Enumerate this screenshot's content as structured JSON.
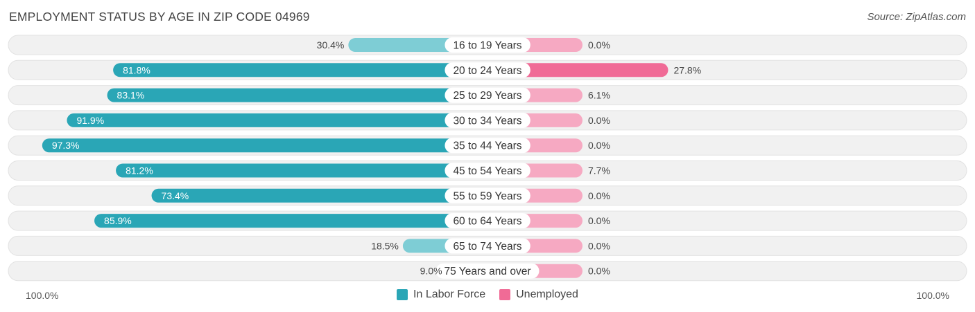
{
  "title": "EMPLOYMENT STATUS BY AGE IN ZIP CODE 04969",
  "source": "Source: ZipAtlas.com",
  "colors": {
    "labor_strong": "#2aa6b6",
    "labor_light": "#7ecdd5",
    "unemp_strong": "#f06b96",
    "unemp_light": "#f6a9c2",
    "row_bg": "#f1f1f1",
    "row_border": "#e2e2e2"
  },
  "legend": {
    "labor": "In Labor Force",
    "unemployed": "Unemployed"
  },
  "axis": {
    "left": "100.0%",
    "right": "100.0%"
  },
  "chart_data": {
    "type": "bar",
    "orientation": "diverging-horizontal",
    "xlim": [
      -100,
      100
    ],
    "categories": [
      "16 to 19 Years",
      "20 to 24 Years",
      "25 to 29 Years",
      "30 to 34 Years",
      "35 to 44 Years",
      "45 to 54 Years",
      "55 to 59 Years",
      "60 to 64 Years",
      "65 to 74 Years",
      "75 Years and over"
    ],
    "series": [
      {
        "name": "In Labor Force",
        "values": [
          30.4,
          81.8,
          83.1,
          91.9,
          97.3,
          81.2,
          73.4,
          85.9,
          18.5,
          9.0
        ],
        "labels": [
          "30.4%",
          "81.8%",
          "83.1%",
          "91.9%",
          "97.3%",
          "81.2%",
          "73.4%",
          "85.9%",
          "18.5%",
          "9.0%"
        ]
      },
      {
        "name": "Unemployed",
        "values": [
          0.0,
          27.8,
          6.1,
          0.0,
          0.0,
          7.7,
          0.0,
          0.0,
          0.0,
          0.0
        ],
        "labels": [
          "0.0%",
          "27.8%",
          "6.1%",
          "0.0%",
          "0.0%",
          "7.7%",
          "0.0%",
          "0.0%",
          "0.0%",
          "0.0%"
        ]
      }
    ]
  }
}
